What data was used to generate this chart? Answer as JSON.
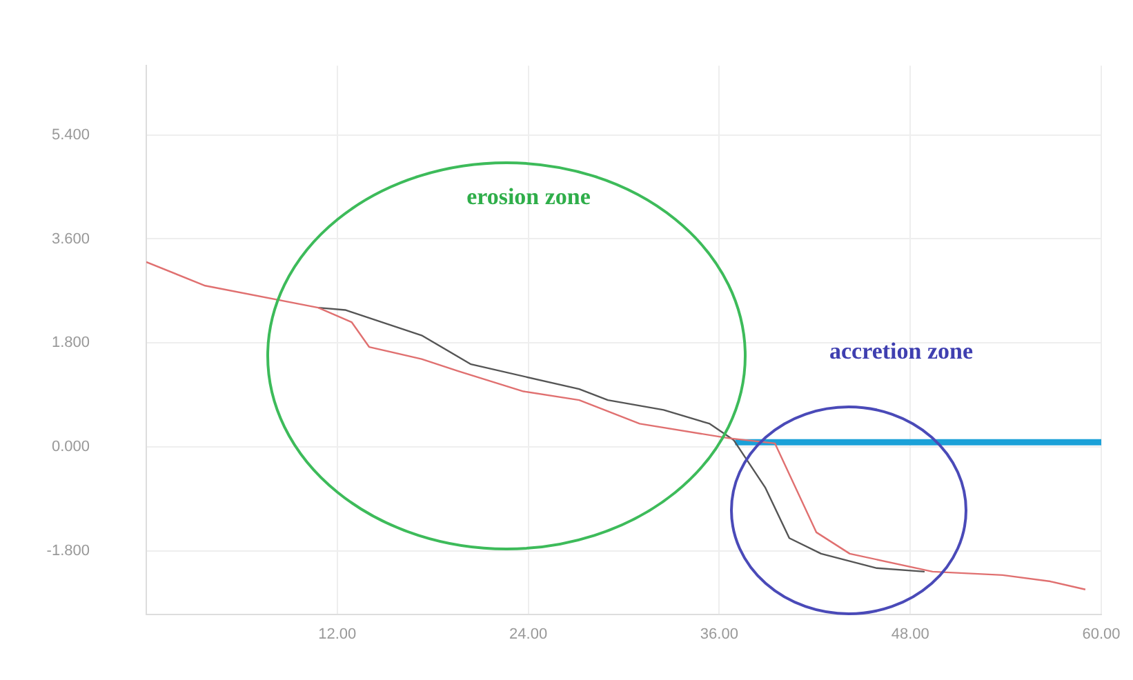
{
  "chart_data": {
    "type": "line",
    "xlim": [
      0,
      60
    ],
    "xticks": [
      {
        "value": 12,
        "label": "12.00"
      },
      {
        "value": 24,
        "label": "24.00"
      },
      {
        "value": 36,
        "label": "36.00"
      },
      {
        "value": 48,
        "label": "48.00"
      },
      {
        "value": 60,
        "label": "60.00"
      }
    ],
    "ylim": [
      -2.9,
      6.6
    ],
    "yticks": [
      {
        "value": -1.8,
        "label": "-1.800"
      },
      {
        "value": 0,
        "label": "0.000"
      },
      {
        "value": 1.8,
        "label": "1.800"
      },
      {
        "value": 3.6,
        "label": "3.600"
      },
      {
        "value": 5.4,
        "label": "5.400"
      }
    ],
    "grid": true,
    "legend": false,
    "marker": "none",
    "series": [
      {
        "color": "#e07070",
        "x": [
          0,
          3.7,
          10.8,
          12.9,
          14.0,
          17.3,
          19.6,
          23.7,
          27.2,
          31,
          36.6,
          39.5,
          42.1,
          44.2,
          49.4,
          53.8,
          56.8,
          59
        ],
        "values": [
          3.2,
          2.79,
          2.41,
          2.16,
          1.73,
          1.52,
          1.31,
          0.96,
          0.81,
          0.4,
          0.15,
          0.06,
          -1.48,
          -1.85,
          -2.16,
          -2.22,
          -2.33,
          -2.47
        ]
      },
      {
        "color": "#555555",
        "x": [
          10.8,
          12.5,
          17.3,
          20.4,
          27.2,
          29,
          32.5,
          35.4,
          36.9,
          38.9,
          40.4,
          42.4,
          45.9,
          48.9
        ],
        "values": [
          2.41,
          2.37,
          1.93,
          1.43,
          1.0,
          0.81,
          0.64,
          0.4,
          0.12,
          -0.71,
          -1.58,
          -1.85,
          -2.1,
          -2.16
        ]
      },
      {
        "color": "#1ba1d8",
        "x": [
          37,
          60
        ],
        "values": [
          0.08,
          0.08
        ]
      }
    ],
    "annotations": [
      "erosion zone",
      "accretion zone"
    ]
  }
}
